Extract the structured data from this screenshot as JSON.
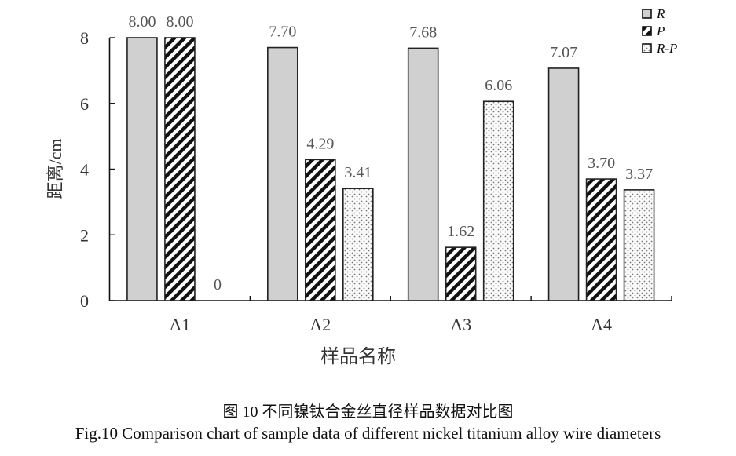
{
  "chart_data": {
    "type": "bar",
    "categories": [
      "A1",
      "A2",
      "A3",
      "A4"
    ],
    "series": [
      {
        "name": "R",
        "values": [
          8.0,
          7.7,
          7.68,
          7.07
        ],
        "labels": [
          "8.00",
          "7.70",
          "7.68",
          "7.07"
        ],
        "fill": "solid-gray",
        "color": "#d0d0d0"
      },
      {
        "name": "P",
        "values": [
          8.0,
          4.29,
          1.62,
          3.7
        ],
        "labels": [
          "8.00",
          "4.29",
          "1.62",
          "3.70"
        ],
        "fill": "diagonal-hatch",
        "color": "#000000"
      },
      {
        "name": "R-P",
        "values": [
          0,
          3.41,
          6.06,
          3.37
        ],
        "labels": [
          "0",
          "3.41",
          "6.06",
          "3.37"
        ],
        "fill": "dots",
        "color": "#888888"
      }
    ],
    "xlabel": "样品名称",
    "ylabel": "距离/cm",
    "ylim": [
      0,
      8
    ],
    "yticks": [
      "0",
      "2",
      "4",
      "6",
      "8"
    ],
    "grid": false,
    "legend": "top-right"
  },
  "caption": {
    "cn": "图 10  不同镍钛合金丝直径样品数据对比图",
    "en": "Fig.10 Comparison chart of sample data of different nickel titanium alloy wire diameters"
  }
}
